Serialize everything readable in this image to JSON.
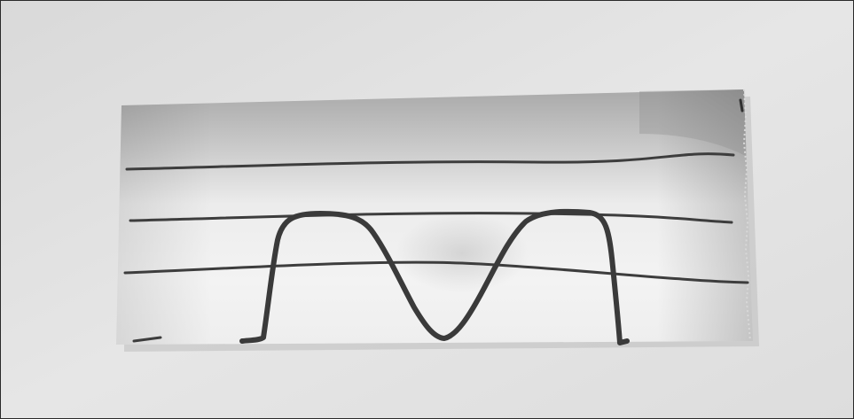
{
  "photo": {
    "subject": "handwritten-ink-curve-on-lined-paper-strip",
    "colors": {
      "background": "#e2e2e2",
      "paper_light": "#f1f1f1",
      "paper_dark": "#9c9c9c",
      "ink": "#3a3a3a"
    }
  }
}
